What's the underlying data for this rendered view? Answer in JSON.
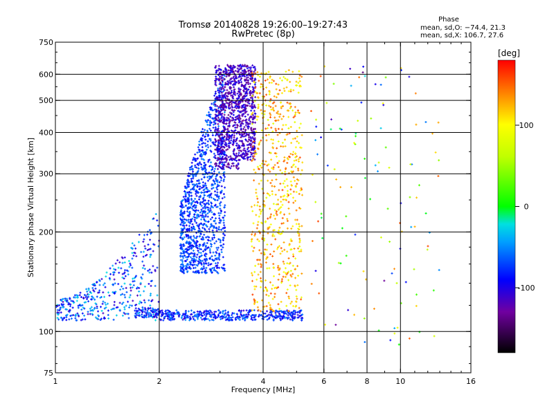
{
  "chart_data": {
    "type": "scatter",
    "title": "Tromsø 20140828 19:26:00–19:27:43",
    "subtitle": "RwPretec (8p)",
    "xlabel": "Frequency [MHz]",
    "ylabel": "Stationary phase Virtual Height [km]",
    "x_scale": "log",
    "y_scale": "log",
    "xlim": [
      1,
      16
    ],
    "ylim": [
      75,
      750
    ],
    "x_ticks": [
      1,
      2,
      4,
      6,
      8,
      10,
      16
    ],
    "y_ticks": [
      75,
      100,
      200,
      300,
      400,
      500,
      600,
      750
    ],
    "grid": true,
    "stats": {
      "heading": "Phase",
      "line_o": "mean, sd,O: −74.4, 21.3",
      "line_x": "mean, sd,X: 106.7, 27.6"
    },
    "colorbar": {
      "label": "[deg]",
      "range": [
        -180,
        180
      ],
      "ticks": [
        100,
        0,
        -100
      ],
      "colormap": "rainbow: black(-180) → purple → blue(-100) → cyan → green(0) → yellow(100) → orange → red(180)"
    },
    "point_groups": [
      {
        "name_hint": "low-frequency echoes",
        "freq_range_mhz": [
          1.0,
          2.0
        ],
        "height_range_km": [
          108,
          240
        ],
        "phase_deg": [
          -120,
          -20
        ]
      },
      {
        "name_hint": "E-region trace",
        "freq_range_mhz": [
          1.7,
          5.2
        ],
        "height_range_km": [
          108,
          116
        ],
        "phase_deg": [
          -110,
          -50
        ]
      },
      {
        "name_hint": "F-region O trace",
        "freq_range_mhz": [
          2.3,
          3.1
        ],
        "height_range_km": [
          150,
          600
        ],
        "phase_deg": [
          -100,
          -50
        ]
      },
      {
        "name_hint": "F-region dense cloud",
        "freq_range_mhz": [
          2.9,
          3.8
        ],
        "height_range_km": [
          310,
          640
        ],
        "phase_deg": [
          -140,
          -90
        ]
      },
      {
        "name_hint": "X-mode echoes",
        "freq_range_mhz": [
          3.7,
          5.2
        ],
        "height_range_km": [
          115,
          620
        ],
        "phase_deg": [
          80,
          160
        ]
      },
      {
        "name_hint": "scattered high-frequency echoes",
        "freq_range_mhz": [
          5.5,
          13.0
        ],
        "height_range_km": [
          85,
          650
        ],
        "phase_deg": [
          -140,
          160
        ]
      }
    ]
  }
}
